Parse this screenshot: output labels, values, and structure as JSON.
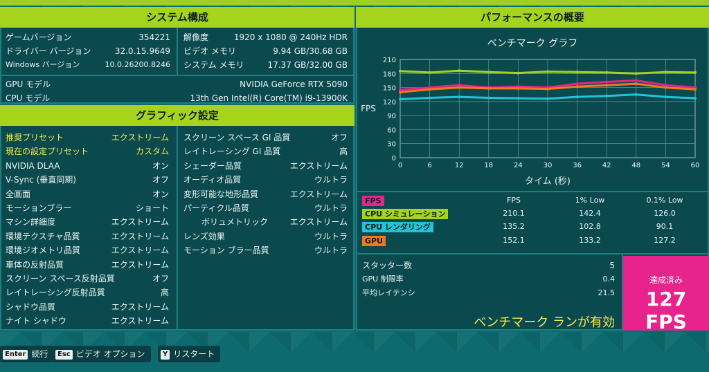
{
  "system": {
    "header": "システム構成",
    "left": [
      {
        "k": "ゲームバージョン",
        "v": "354221"
      },
      {
        "k": "ドライバー バージョン",
        "v": "32.0.15.9649"
      },
      {
        "k": "Windows バージョン",
        "v": "10.0.26200.8246"
      }
    ],
    "right": [
      {
        "k": "解像度",
        "v": "1920 x 1080 @ 240Hz HDR"
      },
      {
        "k": "ビデオ メモリ",
        "v": "9.94 GB/30.68 GB"
      },
      {
        "k": "システム メモリ",
        "v": "17.37 GB/32.00 GB"
      }
    ],
    "gpu": {
      "k": "GPU モデル",
      "v": "NVIDIA GeForce RTX 5090"
    },
    "cpu": {
      "k": "CPU モデル",
      "v": "13th Gen Intel(R) Core(TM) i9-13900K"
    }
  },
  "graphics": {
    "header": "グラフィック設定",
    "left": [
      {
        "k": "推奨プリセット",
        "v": "エクストリーム"
      },
      {
        "k": "現在の設定プリセット",
        "v": "カスタム"
      },
      {
        "k": "NVIDIA DLAA",
        "v": "オン"
      },
      {
        "k": "V-Sync (垂直同期)",
        "v": "オフ"
      },
      {
        "k": "全画面",
        "v": "オン"
      },
      {
        "k": "モーションブラー",
        "v": "ショート"
      },
      {
        "k": "マシン詳細度",
        "v": "エクストリーム"
      },
      {
        "k": "環境テクスチャ品質",
        "v": "エクストリーム"
      },
      {
        "k": "環境ジオメトリ品質",
        "v": "エクストリーム"
      },
      {
        "k": "車体の反射品質",
        "v": "エクストリーム"
      },
      {
        "k": "スクリーン スペース反射品質",
        "v": "オフ"
      },
      {
        "k": "レイトレーシング反射品質",
        "v": "高"
      },
      {
        "k": "シャドウ品質",
        "v": "エクストリーム"
      },
      {
        "k": "ナイト シャドウ",
        "v": "エクストリーム"
      }
    ],
    "right": [
      {
        "k": "スクリーン スペース GI 品質",
        "v": "オフ"
      },
      {
        "k": "レイトレーシング GI 品質",
        "v": "高"
      },
      {
        "k": "シェーダー品質",
        "v": "エクストリーム"
      },
      {
        "k": "オーディオ品質",
        "v": "ウルトラ"
      },
      {
        "k": "変形可能な地形品質",
        "v": "エクストリーム"
      },
      {
        "k": "パーティクル品質",
        "v": "ウルトラ"
      },
      {
        "k": "ボリュメトリック",
        "v": "エクストリーム"
      },
      {
        "k": "レンズ効果",
        "v": "ウルトラ"
      },
      {
        "k": "モーション ブラー品質",
        "v": "ウルトラ"
      }
    ]
  },
  "performance": {
    "header": "パフォーマンスの概要",
    "stats": [
      {
        "k": "スタッター数",
        "v": "5"
      },
      {
        "k": "GPU 制限率",
        "v": "0.4"
      },
      {
        "k": "平均レイテンシ",
        "v": "21.5"
      }
    ],
    "valid_text": "ベンチマーク ランが有効",
    "achieved_label": "達成済み",
    "achieved_value": "127 FPS",
    "table_headers": [
      "FPS",
      "1% Low",
      "0.1% Low"
    ],
    "rows": [
      {
        "label": "FPS",
        "color": "#e8248c",
        "fps": "",
        "low1": "",
        "low01": ""
      },
      {
        "label": "CPU シミュレーション",
        "color": "#a6d41c",
        "fps": "210.1",
        "low1": "142.4",
        "low01": "126.0"
      },
      {
        "label": "CPU レンダリング",
        "color": "#1fc4d8",
        "fps": "135.2",
        "low1": "102.8",
        "low01": "90.1"
      },
      {
        "label": "GPU",
        "color": "#f07a1a",
        "fps": "152.1",
        "low1": "133.2",
        "low01": "127.2"
      }
    ]
  },
  "chart_data": {
    "type": "line",
    "title": "ベンチマーク グラフ",
    "xlabel": "タイム (秒)",
    "ylabel": "FPS",
    "x_ticks": [
      0,
      6,
      12,
      18,
      24,
      30,
      36,
      42,
      48,
      54,
      60
    ],
    "y_ticks": [
      0,
      30,
      60,
      90,
      120,
      150,
      180,
      210
    ],
    "xlim": [
      0,
      60
    ],
    "ylim": [
      0,
      210
    ],
    "grid": true,
    "series": [
      {
        "name": "CPU シミュレーション",
        "color": "#a6d41c",
        "x": [
          0,
          6,
          12,
          18,
          24,
          30,
          36,
          42,
          48,
          54,
          60
        ],
        "y": [
          185,
          182,
          186,
          183,
          181,
          184,
          183,
          182,
          180,
          183,
          182
        ]
      },
      {
        "name": "FPS",
        "color": "#e8248c",
        "x": [
          0,
          6,
          12,
          18,
          24,
          30,
          36,
          42,
          48,
          54,
          60
        ],
        "y": [
          145,
          150,
          155,
          150,
          152,
          150,
          158,
          162,
          165,
          155,
          150
        ]
      },
      {
        "name": "GPU",
        "color": "#f07a1a",
        "x": [
          0,
          6,
          12,
          18,
          24,
          30,
          36,
          42,
          48,
          54,
          60
        ],
        "y": [
          140,
          146,
          150,
          148,
          148,
          147,
          152,
          155,
          158,
          150,
          146
        ]
      },
      {
        "name": "CPU レンダリング",
        "color": "#1fc4d8",
        "x": [
          0,
          6,
          12,
          18,
          24,
          30,
          36,
          42,
          48,
          54,
          60
        ],
        "y": [
          125,
          128,
          130,
          128,
          127,
          126,
          130,
          132,
          135,
          130,
          127
        ]
      }
    ]
  },
  "footer": [
    {
      "key": "Enter",
      "label": "続行"
    },
    {
      "key": "Esc",
      "label": "ビデオ オプション"
    },
    {
      "key": "Y",
      "label": "リスタート"
    }
  ]
}
